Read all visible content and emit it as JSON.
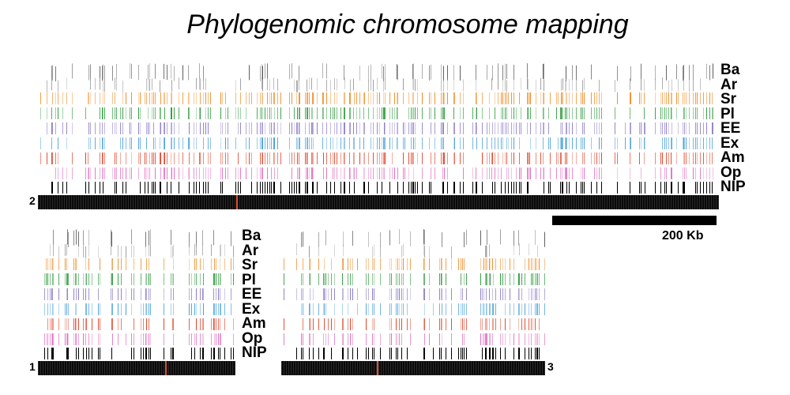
{
  "title": "Phylogenomic chromosome mapping",
  "tracks": [
    {
      "label": "Ba",
      "color": "#5a5a5a"
    },
    {
      "label": "Ar",
      "color": "#9a9a9a"
    },
    {
      "label": "Sr",
      "color": "#f08c28"
    },
    {
      "label": "Pl",
      "color": "#2e9a3c"
    },
    {
      "label": "EE",
      "color": "#8a78c4"
    },
    {
      "label": "Ex",
      "color": "#4aa0d8"
    },
    {
      "label": "Am",
      "color": "#e0442a"
    },
    {
      "label": "Op",
      "color": "#e070c0"
    },
    {
      "label": "NIP",
      "color": "#000000"
    }
  ],
  "chromosomes": [
    {
      "id": "chromosome-2",
      "number": "2"
    },
    {
      "id": "chromosome-1",
      "number": "1"
    },
    {
      "id": "chromosome-3",
      "number": "3"
    }
  ],
  "scale_bar": {
    "label": "200 Kb"
  }
}
